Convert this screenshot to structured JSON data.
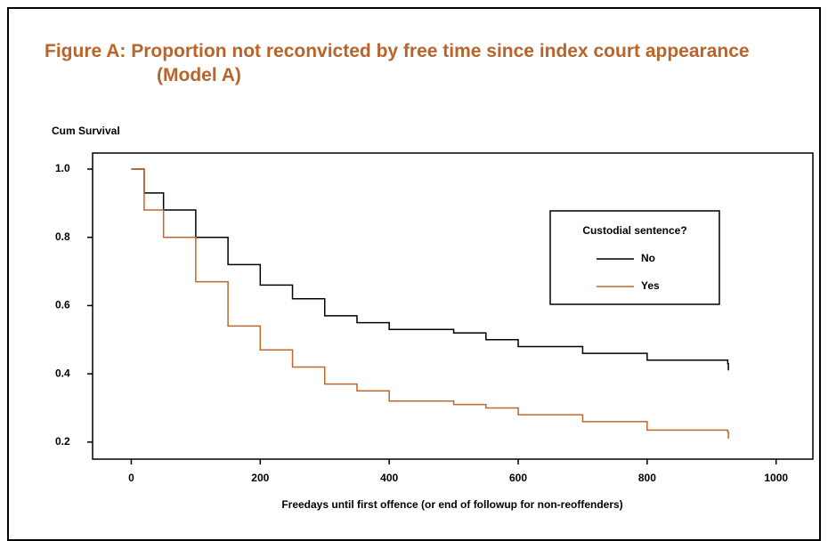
{
  "chart_data": {
    "type": "step",
    "title": "Figure A: Proportion not reconvicted by free time since index court appearance (Model A)",
    "y_label": "Cum Survival",
    "x_label": "Freedays until first offence (or end of followup for non-reoffenders)",
    "legend_title": "Custodial sentence?",
    "x": [
      0,
      20,
      50,
      100,
      150,
      200,
      250,
      300,
      350,
      400,
      500,
      550,
      600,
      700,
      800,
      925,
      926
    ],
    "series": [
      {
        "name": "No",
        "color": "#000000",
        "values": [
          1.0,
          0.93,
          0.88,
          0.8,
          0.72,
          0.66,
          0.62,
          0.57,
          0.55,
          0.53,
          0.52,
          0.5,
          0.48,
          0.46,
          0.44,
          0.43,
          0.41
        ]
      },
      {
        "name": "Yes",
        "color": "#c0672d",
        "values": [
          1.0,
          0.88,
          0.8,
          0.67,
          0.54,
          0.47,
          0.42,
          0.37,
          0.35,
          0.32,
          0.31,
          0.3,
          0.28,
          0.26,
          0.235,
          0.23,
          0.21
        ]
      }
    ],
    "xlim": [
      -60,
      1057
    ],
    "xticks": [
      0,
      200,
      400,
      600,
      800,
      1000
    ],
    "ylim": [
      0.15,
      1.047
    ],
    "yticks": [
      0.2,
      0.4,
      0.6,
      0.8,
      {
        "value": 1,
        "label": "1.0"
      }
    ]
  }
}
